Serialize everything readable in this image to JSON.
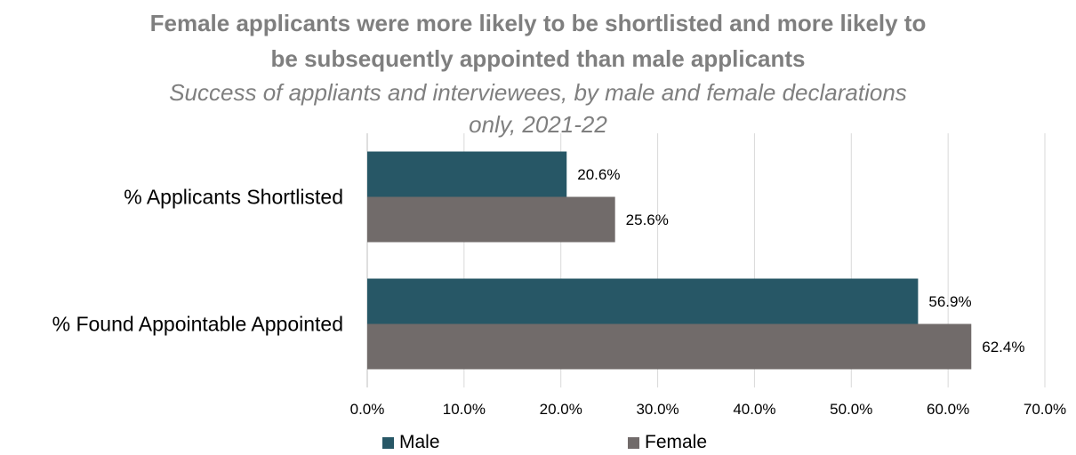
{
  "chart_data": {
    "type": "bar",
    "orientation": "horizontal",
    "title": "Female applicants were more likely to be shortlisted and more likely to be subsequently appointed than male applicants",
    "subtitle": "Success of appliants and interviewees, by male and female declarations only, 2021-22",
    "categories": [
      "% Applicants Shortlisted",
      "% Found Appointable Appointed"
    ],
    "series": [
      {
        "name": "Male",
        "values": [
          20.6,
          56.9
        ],
        "labels": [
          "20.6%",
          "56.9%"
        ],
        "color": "#275766"
      },
      {
        "name": "Female",
        "values": [
          25.6,
          62.4
        ],
        "labels": [
          "25.6%",
          "62.4%"
        ],
        "color": "#716b6a"
      }
    ],
    "xlim": [
      0,
      70
    ],
    "xticks": [
      "0.0%",
      "10.0%",
      "20.0%",
      "30.0%",
      "40.0%",
      "50.0%",
      "60.0%",
      "70.0%"
    ],
    "grid": true,
    "legend": "bottom"
  }
}
